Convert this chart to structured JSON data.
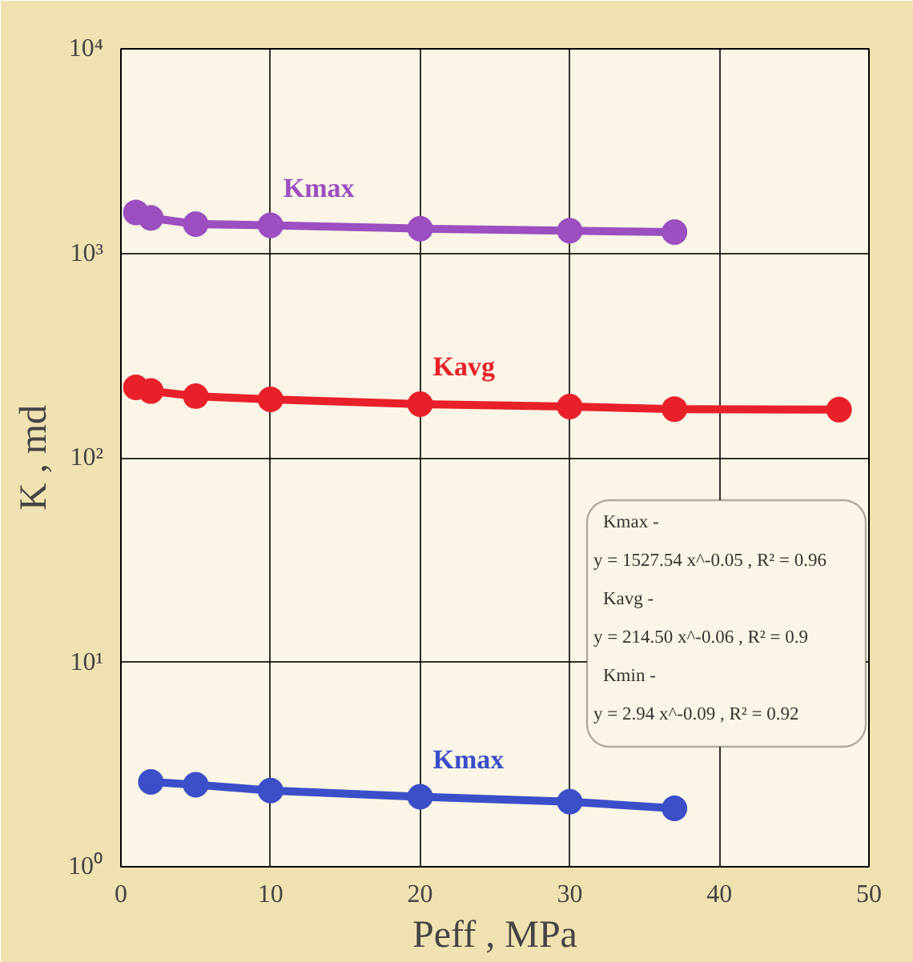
{
  "chart_data": {
    "type": "line",
    "xlabel": "Peff , MPa",
    "ylabel": "K , md",
    "log": "y",
    "grid": true,
    "marker": "circle",
    "line_style": "solid",
    "xlim": [
      0,
      50
    ],
    "xticks": [
      0,
      10,
      20,
      30,
      40,
      50
    ],
    "ylim": [
      1,
      10000
    ],
    "yticks": [
      {
        "value": 1,
        "label": "10⁰"
      },
      {
        "value": 10,
        "label": "10¹"
      },
      {
        "value": 100,
        "label": "10²"
      },
      {
        "value": 1000,
        "label": "10³"
      },
      {
        "value": 10000,
        "label": "10⁴"
      }
    ],
    "series": [
      {
        "name": "Kmax",
        "color": "#9b4fc0",
        "x": [
          1,
          2,
          5,
          10,
          20,
          30,
          37
        ],
        "values": [
          1585,
          1490,
          1390,
          1370,
          1320,
          1290,
          1270
        ]
      },
      {
        "name": "Kavg",
        "color": "#e8202a",
        "x": [
          1,
          2,
          5,
          10,
          20,
          30,
          37,
          48
        ],
        "values": [
          221,
          212,
          200,
          193,
          183,
          178,
          173,
          172
        ]
      },
      {
        "name": "Kmax",
        "color": "#3a4fc8",
        "x": [
          2,
          5,
          10,
          20,
          30,
          37
        ],
        "values": [
          2.6,
          2.52,
          2.36,
          2.2,
          2.08,
          1.93
        ]
      }
    ],
    "annotations": [
      "Kmax -",
      "y = 1527.54 x^-0.05 , R² = 0.96",
      "Kavg -",
      "y = 214.50 x^-0.06 , R² = 0.9",
      "Kmin -",
      "y = 2.94 x^-0.09 , R² = 0.92"
    ]
  }
}
